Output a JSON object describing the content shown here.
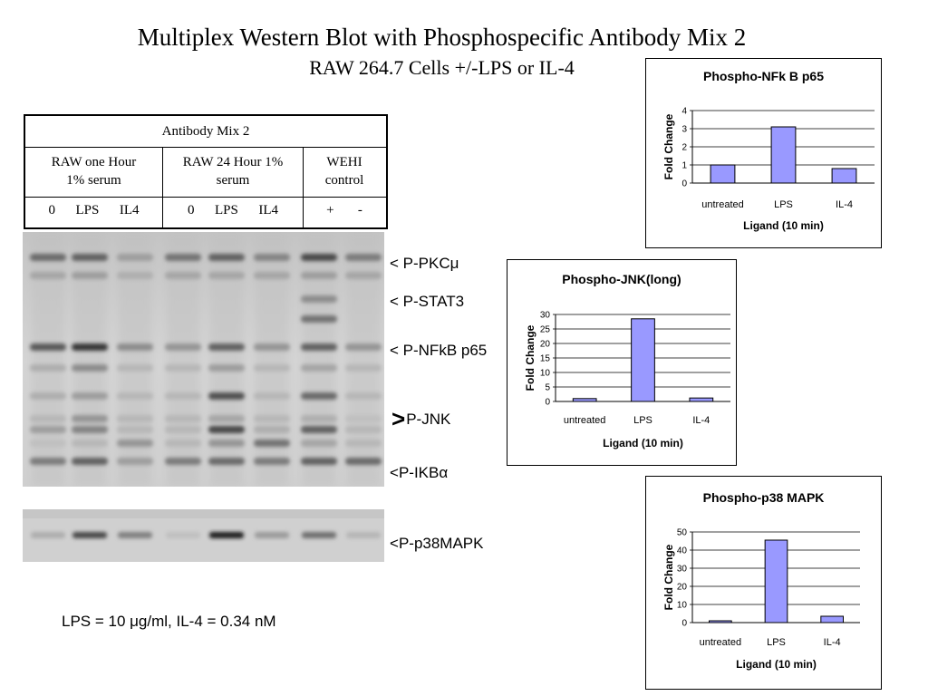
{
  "title": "Multiplex Western Blot with Phosphospecific Antibody Mix 2",
  "subtitle": "RAW 264.7 Cells +/-LPS or IL-4",
  "antibody_table": {
    "header": "Antibody Mix 2",
    "groups": [
      {
        "label_line1": "RAW one Hour",
        "label_line2": "1% serum",
        "lanes": "0      LPS      IL4"
      },
      {
        "label_line1": "RAW 24 Hour 1%",
        "label_line2": "serum",
        "lanes": "0      LPS      IL4"
      },
      {
        "label_line1": "WEHI",
        "label_line2": "control",
        "lanes": "+       -"
      }
    ]
  },
  "blot_labels": {
    "pkc": {
      "prefix": "< ",
      "text": "P-PKCμ"
    },
    "stat3": {
      "prefix": "< ",
      "text": "P-STAT3"
    },
    "nfkb": {
      "prefix": "< ",
      "text": "P-NFkB p65"
    },
    "jnk": {
      "prefix": ">",
      "text": "P-JNK"
    },
    "ikb": {
      "prefix": "<",
      "text": "P-IKBα"
    },
    "p38": {
      "prefix": "<",
      "text": "P-p38MAPK"
    }
  },
  "footnote": "LPS = 10 μg/ml, IL-4 = 0.34 nM",
  "colors": {
    "bar_fill": "#9999ff",
    "bar_stroke": "#000000",
    "grid": "#000000"
  },
  "chart_data": [
    {
      "type": "bar",
      "title": "Phospho-NFk B p65",
      "categories": [
        "untreated",
        "LPS",
        "IL-4"
      ],
      "values": [
        1.0,
        3.1,
        0.8
      ],
      "xlabel": "Ligand (10 min)",
      "ylabel": "Fold Change",
      "ylim": [
        0,
        4
      ],
      "yticks": [
        "0",
        "1",
        "2",
        "3",
        "4"
      ],
      "grid": true
    },
    {
      "type": "bar",
      "title": "Phospho-JNK(long)",
      "categories": [
        "untreated",
        "LPS",
        "IL-4"
      ],
      "values": [
        1.0,
        28.5,
        1.2
      ],
      "xlabel": "Ligand (10 min)",
      "ylabel": "Fold Change",
      "ylim": [
        0,
        30
      ],
      "yticks": [
        "0",
        "5",
        "10",
        "15",
        "20",
        "25",
        "30"
      ],
      "grid": true
    },
    {
      "type": "bar",
      "title": "Phospho-p38 MAPK",
      "categories": [
        "untreated",
        "LPS",
        "IL-4"
      ],
      "values": [
        1.0,
        45.5,
        3.5
      ],
      "xlabel": "Ligand (10 min)",
      "ylabel": "Fold Change",
      "ylim": [
        0,
        50
      ],
      "yticks": [
        "0",
        "10",
        "20",
        "30",
        "40",
        "50"
      ],
      "grid": true
    }
  ]
}
